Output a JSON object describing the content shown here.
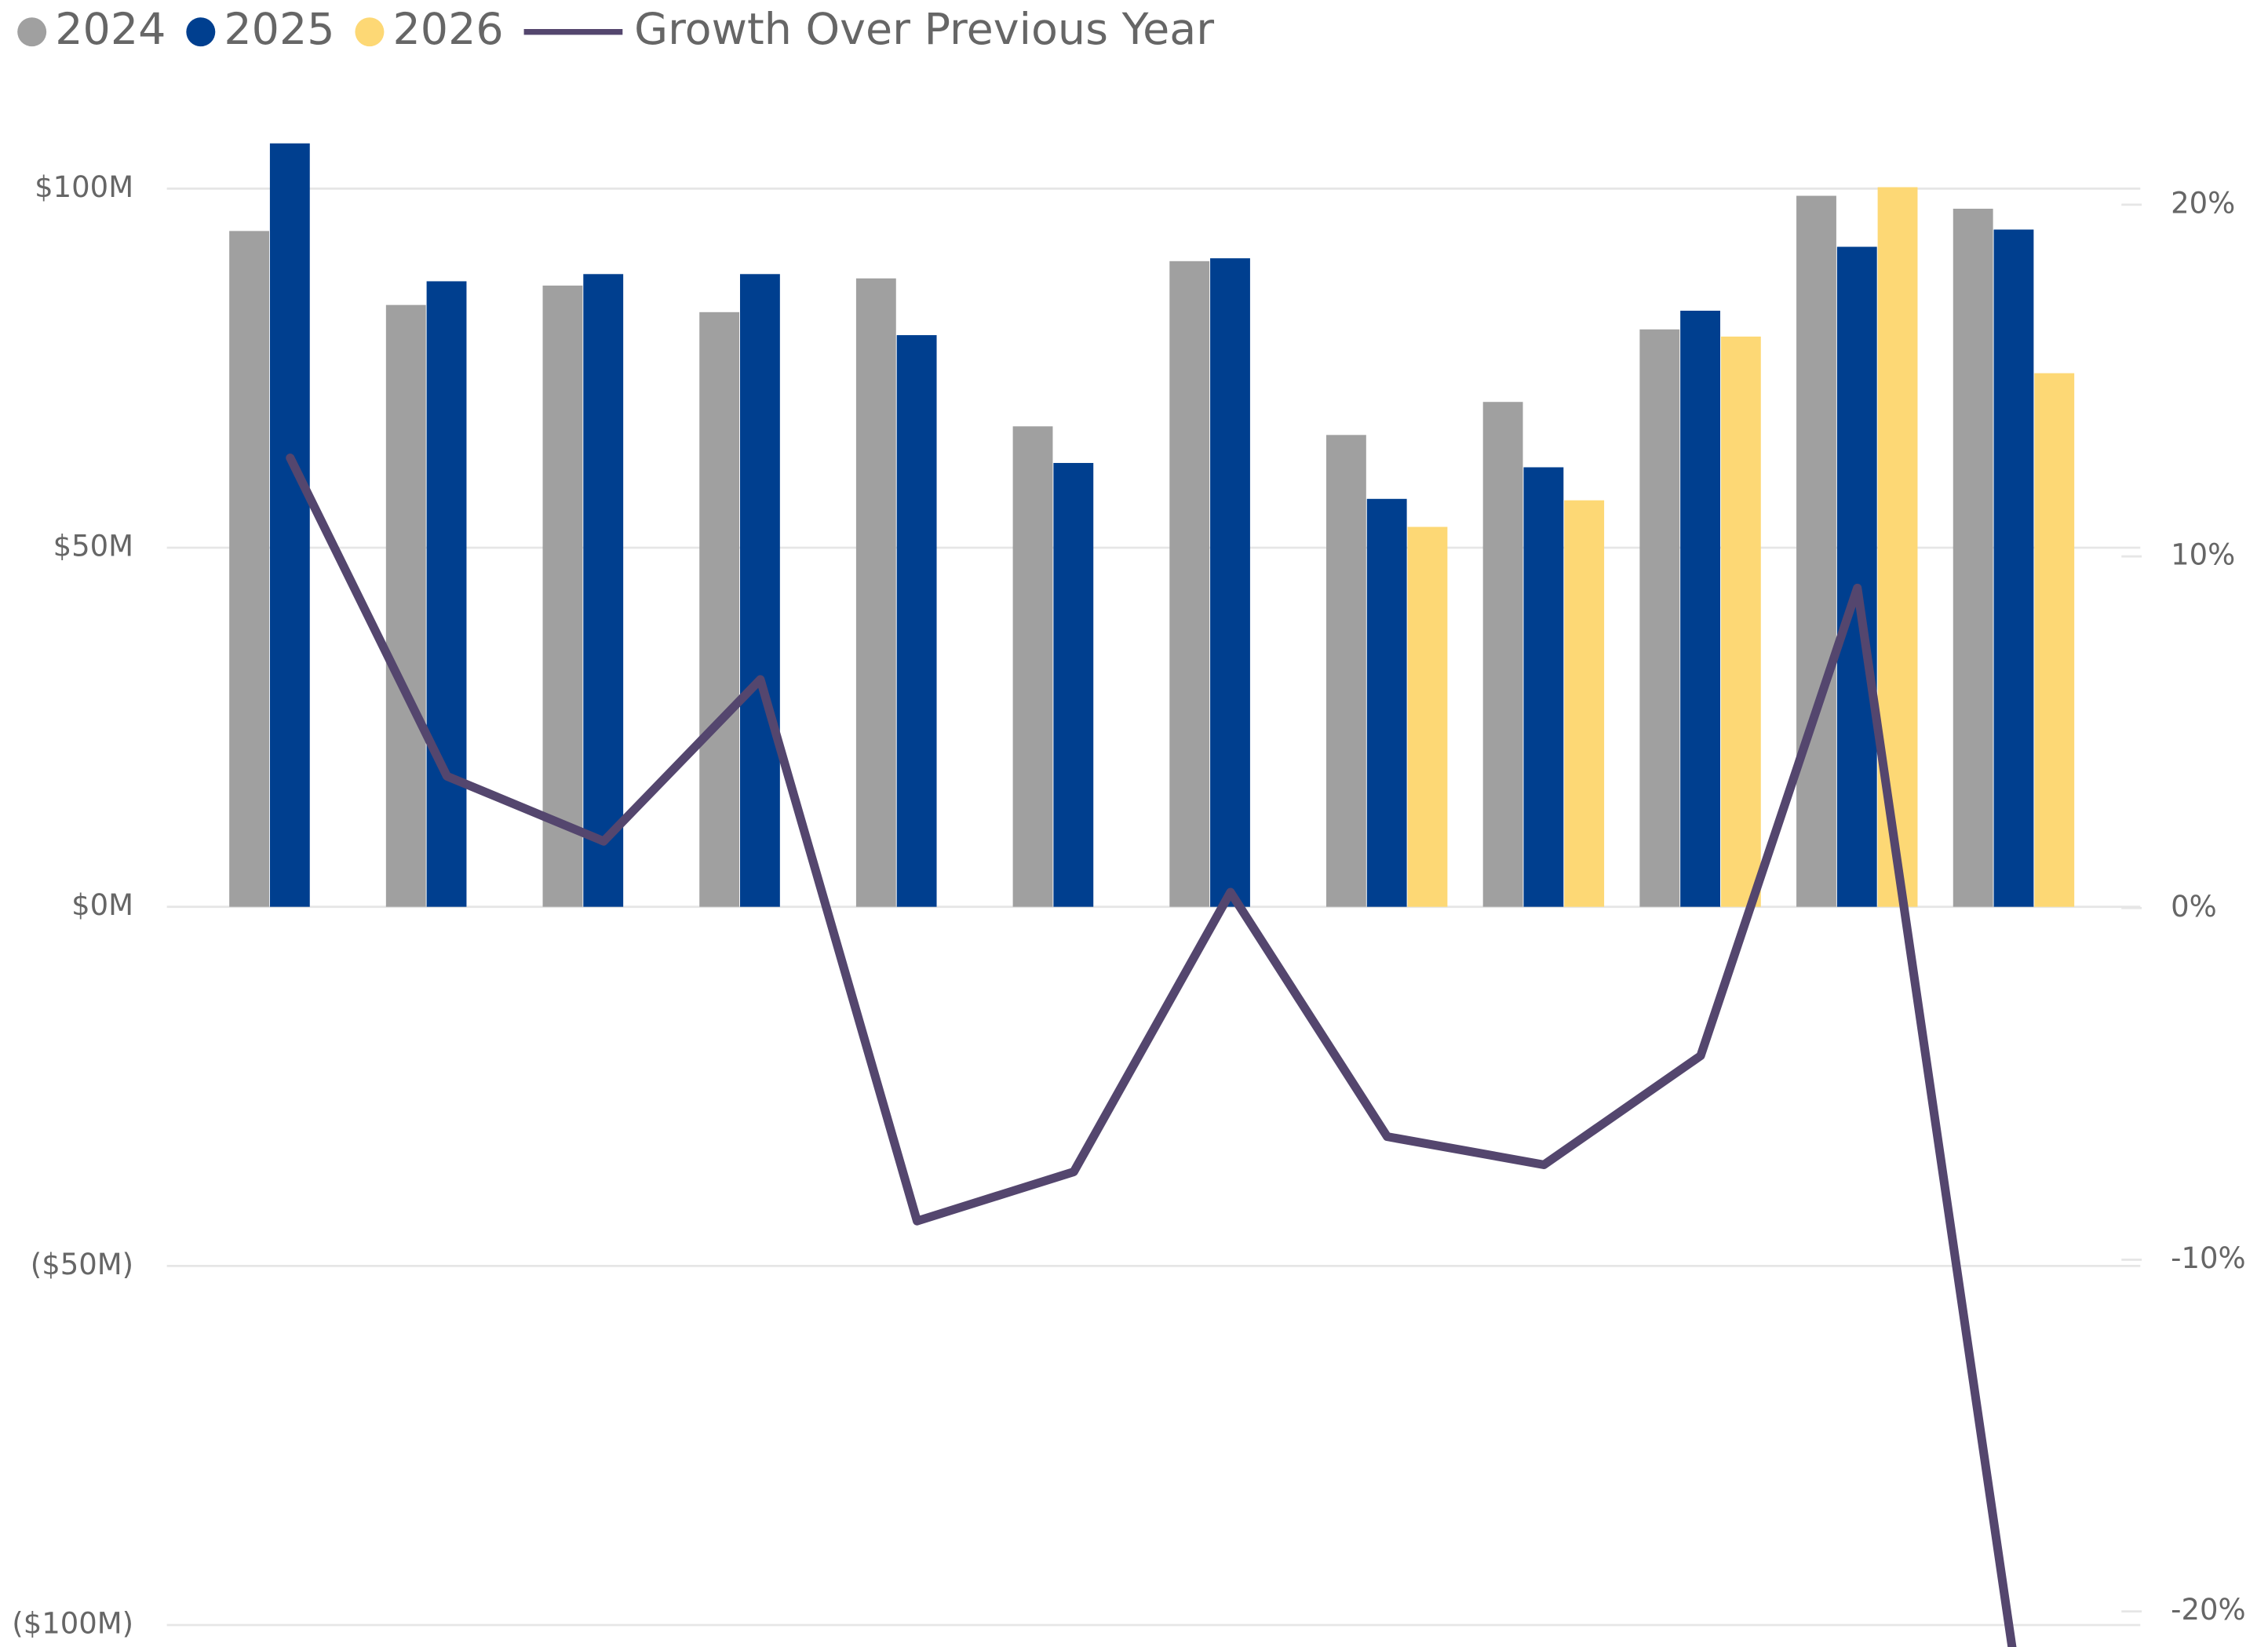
{
  "chart_data": {
    "type": "bar-line",
    "categories": [
      null,
      null,
      null,
      null,
      null,
      null,
      null,
      null,
      null,
      null,
      null,
      null
    ],
    "series": [
      {
        "name": "2024",
        "color": "#a0a0a0",
        "values": [
          94.1,
          83.8,
          86.5,
          82.8,
          87.5,
          66.9,
          89.9,
          65.7,
          70.3,
          80.4,
          99.0,
          97.2
        ]
      },
      {
        "name": "2025",
        "color": "#003f8f",
        "values": [
          106.3,
          87.1,
          88.1,
          88.1,
          79.6,
          61.8,
          90.3,
          56.8,
          61.2,
          83.0,
          91.9,
          94.3
        ]
      },
      {
        "name": "2026",
        "color": "#fdd875",
        "values": [
          null,
          null,
          null,
          null,
          null,
          null,
          null,
          52.9,
          56.6,
          79.4,
          100.2,
          74.3
        ]
      },
      {
        "name": "Growth Over Previous Year",
        "color": "#54466e",
        "type": "line",
        "axis": "y2",
        "values": [
          12.8,
          3.75,
          1.9,
          6.5,
          -8.9,
          -7.5,
          0.45,
          -6.5,
          -7.3,
          -4.2,
          9.1,
          -21.4
        ]
      }
    ],
    "ylim": [
      -103,
      110
    ],
    "yticks": [
      {
        "value": -100,
        "label": "($100M)"
      },
      {
        "value": -50,
        "label": "($50M)"
      },
      {
        "value": 0,
        "label": "$0M"
      },
      {
        "value": 50,
        "label": "$50M"
      },
      {
        "value": 100,
        "label": "$100M"
      }
    ],
    "y2lim": [
      -21,
      22.5
    ],
    "y2ticks": [
      {
        "value": -20,
        "label": "-20%"
      },
      {
        "value": -10,
        "label": "-10%"
      },
      {
        "value": 0,
        "label": "0%"
      },
      {
        "value": 10,
        "label": "10%"
      },
      {
        "value": 20,
        "label": "20%"
      }
    ],
    "grid": true,
    "legend": "top-left"
  }
}
